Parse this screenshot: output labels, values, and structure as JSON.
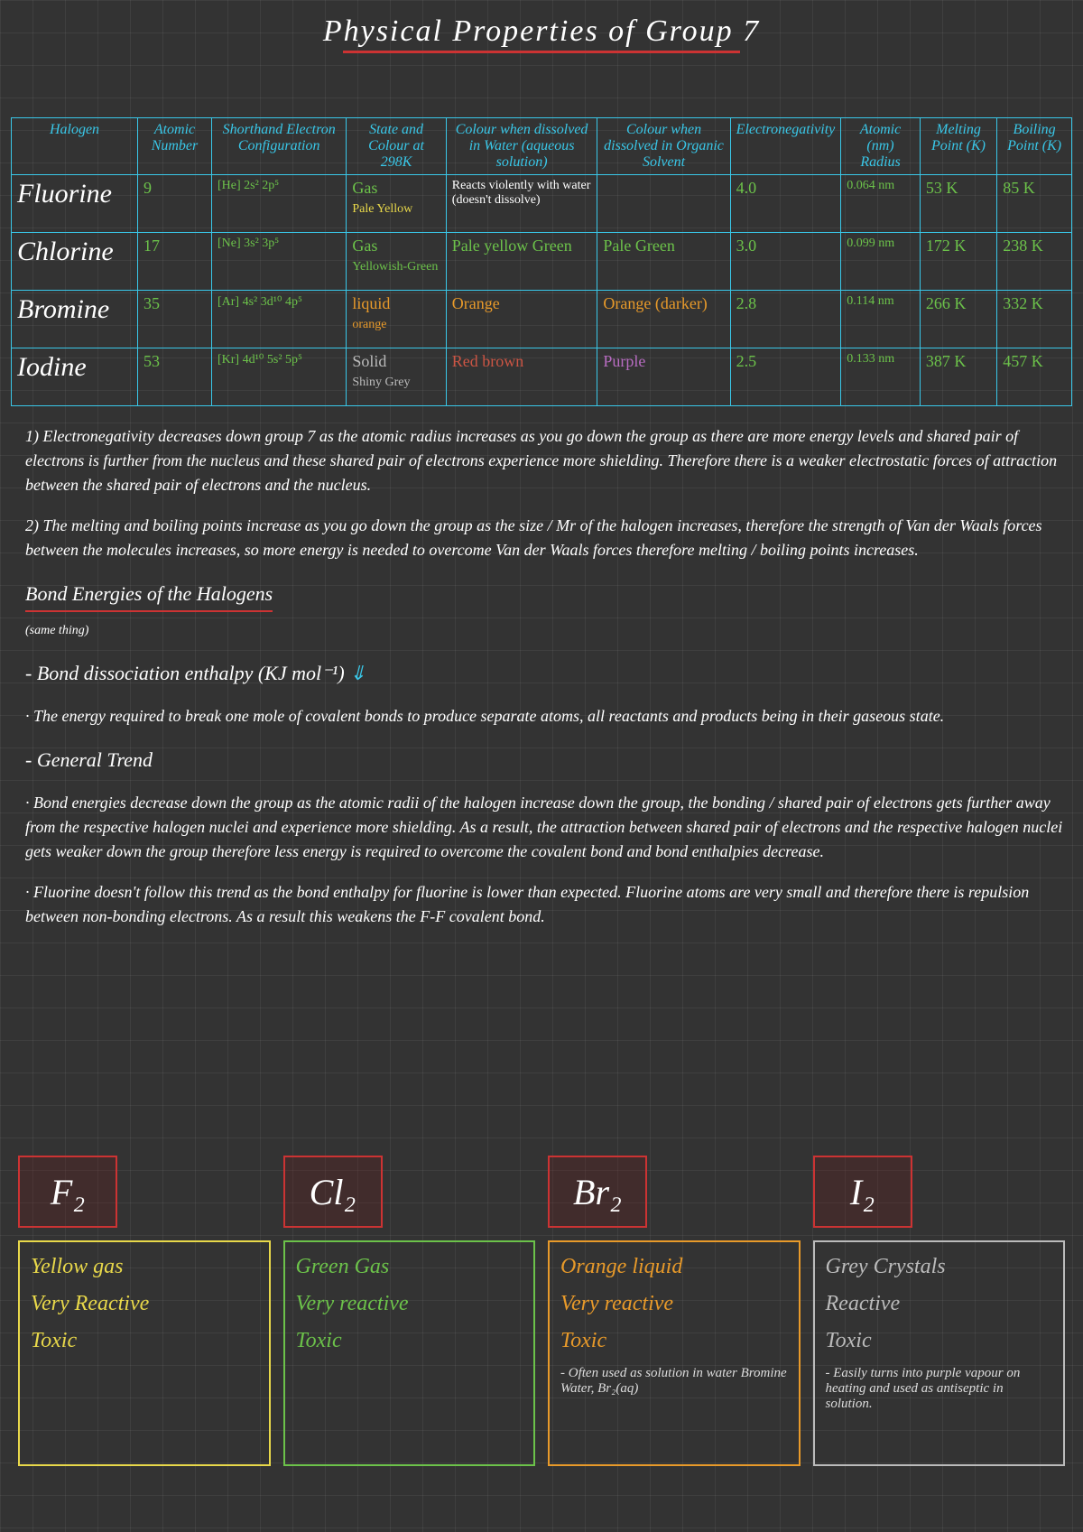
{
  "title": "Physical Properties of Group 7",
  "headers": [
    "Halogen",
    "Atomic Number",
    "Shorthand Electron Configuration",
    "State and Colour at 298K",
    "Colour when dissolved in Water (aqueous solution)",
    "Colour when dissolved in Organic Solvent",
    "Electronegativity",
    "Atomic (nm) Radius",
    "Melting Point (K)",
    "Boiling Point (K)"
  ],
  "rows": [
    {
      "name": "Fluorine",
      "num": "9",
      "config": "[He] 2s² 2p⁵",
      "state": "Gas",
      "state_c": "Pale Yellow",
      "water": "Reacts violently with water (doesn't dissolve)",
      "organic": "",
      "en": "4.0",
      "radius": "0.064 nm",
      "mp": "53 K",
      "bp": "85 K",
      "colors": {
        "state": "green",
        "sc": "yellow"
      }
    },
    {
      "name": "Chlorine",
      "num": "17",
      "config": "[Ne] 3s² 3p⁵",
      "state": "Gas",
      "state_c": "Yellowish-Green",
      "water": "Pale yellow Green",
      "organic": "Pale Green",
      "en": "3.0",
      "radius": "0.099 nm",
      "mp": "172 K",
      "bp": "238 K",
      "colors": {
        "state": "green",
        "sc": "green"
      }
    },
    {
      "name": "Bromine",
      "num": "35",
      "config": "[Ar] 4s² 3d¹⁰ 4p⁵",
      "state": "liquid",
      "state_c": "orange",
      "water": "Orange",
      "organic": "Orange (darker)",
      "en": "2.8",
      "radius": "0.114 nm",
      "mp": "266 K",
      "bp": "332 K",
      "colors": {
        "state": "orange",
        "sc": "orange"
      }
    },
    {
      "name": "Iodine",
      "num": "53",
      "config": "[Kr] 4d¹⁰ 5s² 5p⁵",
      "state": "Solid",
      "state_c": "Shiny Grey",
      "water": "Red brown",
      "organic": "Purple",
      "en": "2.5",
      "radius": "0.133 nm",
      "mp": "387 K",
      "bp": "457 K",
      "colors": {
        "state": "grey",
        "sc": "grey"
      }
    }
  ],
  "note1": "1) Electronegativity decreases down group 7 as the atomic radius increases as you go down the group as there are more energy levels and shared pair of electrons is further from the nucleus and these shared pair of electrons experience more shielding. Therefore there is a weaker electrostatic forces of attraction between the shared pair of electrons and the nucleus.",
  "note2": "2) The melting and boiling points increase as you go down the group as the size / Mr of the halogen increases, therefore the strength of Van der Waals forces between the molecules increases, so more energy is needed to overcome Van der Waals forces therefore melting / boiling points increases.",
  "bondhead": "Bond Energies of the Halogens",
  "bondsub": "(same thing)",
  "bde": "- Bond dissociation enthalpy (KJ mol⁻¹)",
  "bdedef": "· The energy required to break one mole of covalent bonds to produce separate atoms, all reactants and products being in their gaseous state.",
  "gentrend": "- General Trend",
  "trend1": "· Bond energies decrease down the group as the atomic radii of the halogen increase down the group, the bonding / shared pair of electrons gets further away from the respective halogen nuclei and experience more shielding. As a result, the attraction between shared pair of electrons and the respective halogen nuclei gets weaker down the group therefore less energy is required to overcome the covalent bond and bond enthalpies decrease.",
  "trend2": "· Fluorine doesn't follow this trend as the bond enthalpy for fluorine is lower than expected. Fluorine atoms are very small and therefore there is repulsion between non-bonding electrons. As a result this weakens the F-F covalent bond.",
  "cards": [
    {
      "formula": "F₂",
      "border": "#e8d84a",
      "txt": "#e8d84a",
      "l1": "Yellow gas",
      "l2": "Very Reactive",
      "l3": "Toxic",
      "extra": ""
    },
    {
      "formula": "Cl₂",
      "border": "#6cc24a",
      "txt": "#6cc24a",
      "l1": "Green Gas",
      "l2": "Very reactive",
      "l3": "Toxic",
      "extra": ""
    },
    {
      "formula": "Br₂",
      "border": "#e89a2a",
      "txt": "#e89a2a",
      "l1": "Orange liquid",
      "l2": "Very reactive",
      "l3": "Toxic",
      "extra": "- Often used as solution in water Bromine Water, Br₂(aq)"
    },
    {
      "formula": "I₂",
      "border": "#bbbbbb",
      "txt": "#bbbbbb",
      "l1": "Grey Crystals",
      "l2": "Reactive",
      "l3": "Toxic",
      "extra": "- Easily turns into purple vapour on heating and used as antiseptic in solution."
    }
  ]
}
